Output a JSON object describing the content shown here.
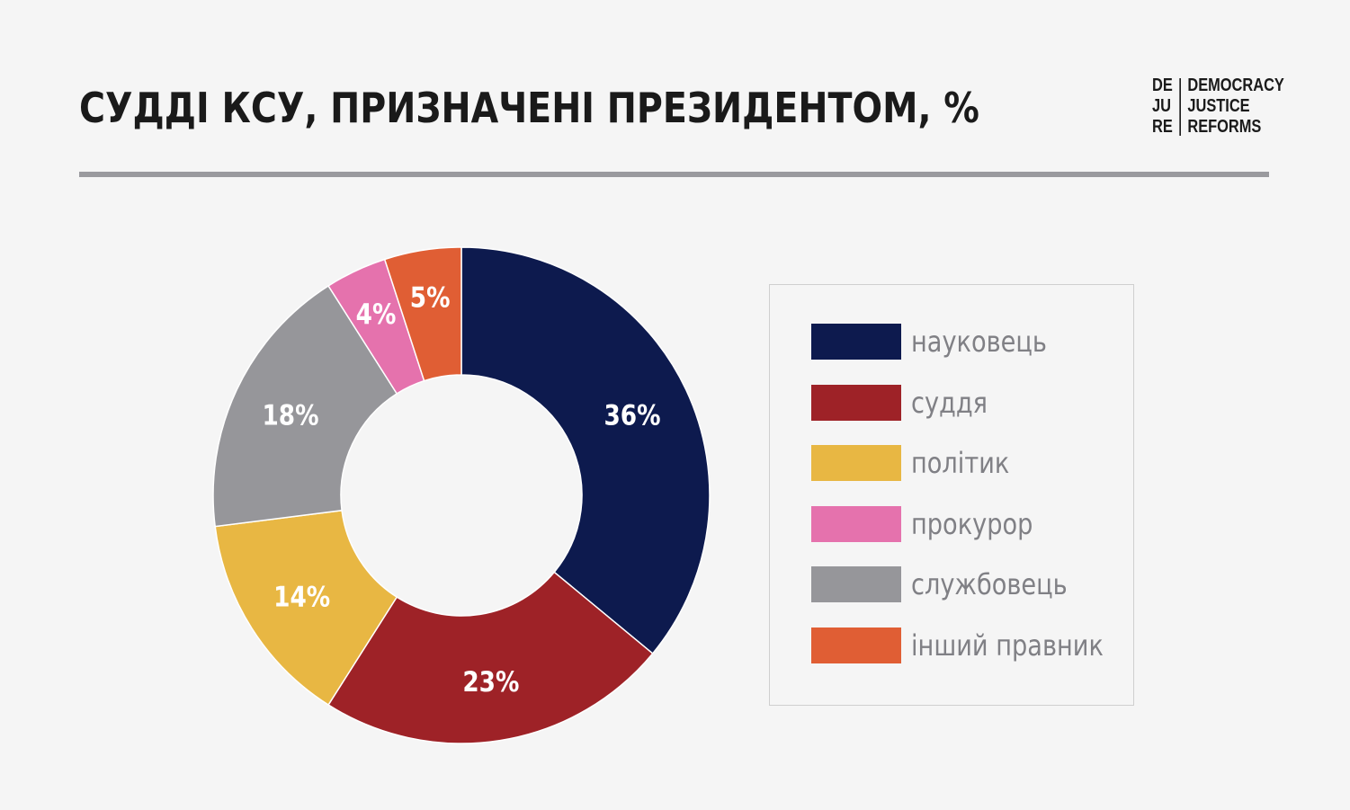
{
  "header": {
    "title": "СУДДІ КСУ, ПРИЗНАЧЕНІ ПРЕЗИДЕНТОМ, %"
  },
  "logo": {
    "left_lines": [
      "DE",
      "JU",
      "RE"
    ],
    "right_lines": [
      "DEMOCRACY",
      "JUSTICE",
      "REFORMS"
    ]
  },
  "colors": {
    "background": "#f5f5f5",
    "divider": "#9a9a9e",
    "label_text": "#ffffff"
  },
  "chart_data": {
    "type": "pie",
    "variant": "donut",
    "title": "СУДДІ КСУ, ПРИЗНАЧЕНІ ПРЕЗИДЕНТОМ, %",
    "legend_position": "right",
    "series": [
      {
        "name": "науковець",
        "value": 36,
        "label": "36%",
        "color": "#0d1a4e"
      },
      {
        "name": "суддя",
        "value": 23,
        "label": "23%",
        "color": "#9e2227"
      },
      {
        "name": "політик",
        "value": 14,
        "label": "14%",
        "color": "#e8b743"
      },
      {
        "name": "службовець",
        "value": 18,
        "label": "18%",
        "color": "#96969a"
      },
      {
        "name": "прокурор",
        "value": 4,
        "label": "4%",
        "color": "#e572ad"
      },
      {
        "name": "інший правник",
        "value": 5,
        "label": "5%",
        "color": "#e05e34"
      }
    ],
    "legend": [
      {
        "label": "науковець",
        "color": "#0d1a4e"
      },
      {
        "label": "суддя",
        "color": "#9e2227"
      },
      {
        "label": "політик",
        "color": "#e8b743"
      },
      {
        "label": "прокурор",
        "color": "#e572ad"
      },
      {
        "label": "службовець",
        "color": "#96969a"
      },
      {
        "label": "інший правник",
        "color": "#e05e34"
      }
    ]
  }
}
